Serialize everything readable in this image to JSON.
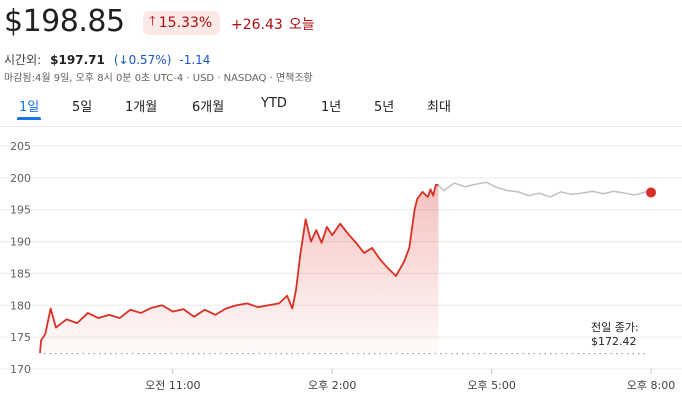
{
  "header": {
    "price": "$198.85",
    "change_pct": "15.33%",
    "change_abs": "+26.43",
    "change_suffix": "오늘",
    "up_color": "#a50e0e"
  },
  "after_hours": {
    "label": "시간외:",
    "price": "$197.71",
    "pct": "0.57%",
    "abs": "-1.14",
    "down_color": "#1a56c5"
  },
  "meta_line": "마감됨:4월 9일, 오후 8시 0분 0초 UTC-4 · USD · NASDAQ · 면책조항",
  "tabs": [
    {
      "label": "1일",
      "active": true
    },
    {
      "label": "5일"
    },
    {
      "label": "1개월"
    },
    {
      "label": "6개월"
    },
    {
      "label": "YTD"
    },
    {
      "label": "1년"
    },
    {
      "label": "5년"
    },
    {
      "label": "최대"
    }
  ],
  "prev_close": {
    "label": "전일 종가:",
    "value": "$172.42"
  },
  "chart_data": {
    "type": "line",
    "x_unit": "hours (ET)",
    "xlim": [
      8.5,
      20
    ],
    "ylim": [
      170,
      205
    ],
    "yticks": [
      170,
      175,
      180,
      185,
      190,
      195,
      200,
      205
    ],
    "xticks": [
      {
        "x": 11,
        "label": "오전 11:00"
      },
      {
        "x": 14,
        "label": "오후 2:00"
      },
      {
        "x": 17,
        "label": "오후 5:00"
      },
      {
        "x": 20,
        "label": "오후 8:00"
      }
    ],
    "previous_close": 172.42,
    "grid": true,
    "colors": {
      "session": "#d93025",
      "after_hours": "#bdc1c6",
      "grid": "#e8eaed",
      "prev_close": "#9aa0a6"
    },
    "series": [
      {
        "segment": "regular",
        "x": [
          8.5,
          8.52,
          8.6,
          8.7,
          8.8,
          9.0,
          9.2,
          9.4,
          9.6,
          9.8,
          10.0,
          10.2,
          10.4,
          10.6,
          10.8,
          11.0,
          11.2,
          11.4,
          11.6,
          11.8,
          12.0,
          12.2,
          12.4,
          12.6,
          12.8,
          13.0,
          13.15,
          13.25,
          13.32,
          13.4,
          13.5,
          13.6,
          13.7,
          13.8,
          13.9,
          14.0,
          14.15,
          14.3,
          14.45,
          14.6,
          14.75,
          14.9,
          15.05,
          15.2,
          15.35,
          15.45,
          15.55,
          15.6,
          15.7,
          15.8,
          15.85,
          15.9,
          15.95,
          16.0
        ],
        "y": [
          172.5,
          174.5,
          175.5,
          179.5,
          176.5,
          177.8,
          177.2,
          178.8,
          178.0,
          178.5,
          178.0,
          179.3,
          178.8,
          179.6,
          180.0,
          179.0,
          179.4,
          178.2,
          179.3,
          178.5,
          179.5,
          180.0,
          180.3,
          179.7,
          180.0,
          180.3,
          181.5,
          179.5,
          182.5,
          188.0,
          193.5,
          190.0,
          191.8,
          189.8,
          192.3,
          191.0,
          192.8,
          191.2,
          189.8,
          188.2,
          189.0,
          187.2,
          185.8,
          184.6,
          186.8,
          189.0,
          195.0,
          196.7,
          197.8,
          197.0,
          198.2,
          197.2,
          198.9,
          198.85
        ]
      },
      {
        "segment": "after_hours",
        "x": [
          16.0,
          16.1,
          16.3,
          16.5,
          16.7,
          16.9,
          17.1,
          17.3,
          17.5,
          17.7,
          17.9,
          18.1,
          18.3,
          18.5,
          18.7,
          18.9,
          19.1,
          19.3,
          19.5,
          19.7,
          19.9,
          20.0
        ],
        "y": [
          198.85,
          198.0,
          199.2,
          198.6,
          199.0,
          199.3,
          198.5,
          198.0,
          197.8,
          197.2,
          197.6,
          197.0,
          197.8,
          197.4,
          197.6,
          197.9,
          197.5,
          197.9,
          197.6,
          197.3,
          197.8,
          197.71
        ]
      }
    ]
  }
}
